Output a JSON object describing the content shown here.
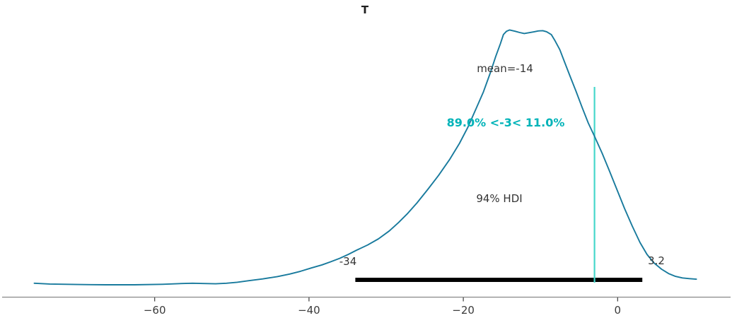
{
  "title": "T",
  "labels": {
    "mean": "mean=-14",
    "ref": "89.0% <-3< 11.0%",
    "hdi": "94% HDI",
    "hdi_lower": "-34",
    "hdi_upper": "3.2"
  },
  "colors": {
    "curve": "#187a9d",
    "ref_line": "#45d7cb",
    "ref_text": "#00b3b8",
    "hdi_bar": "#000000",
    "axis_line": "#888888",
    "tick": "#3b3b3b",
    "text": "#343434",
    "title": "#1f1f1f"
  },
  "chart_data": {
    "type": "line",
    "subtype": "posterior-kde",
    "title": "T",
    "xlabel": "",
    "ylabel": "",
    "xlim": [
      -76,
      10.5
    ],
    "grid": false,
    "mean": -14,
    "ref_val": -3,
    "pct_below_ref": 89.0,
    "pct_above_ref": 11.0,
    "hdi": {
      "prob_label": "94% HDI",
      "lower": -34,
      "upper": 3.2
    },
    "x_ticks": [
      {
        "value": -60,
        "label": "−60"
      },
      {
        "value": -40,
        "label": "−40"
      },
      {
        "value": -20,
        "label": "−20"
      },
      {
        "value": 0,
        "label": "0"
      }
    ],
    "curve": [
      [
        -75.6,
        0.006
      ],
      [
        -73.6,
        0.003
      ],
      [
        -70,
        0.001
      ],
      [
        -66.3,
        0
      ],
      [
        -62.6,
        0
      ],
      [
        -59,
        0.002
      ],
      [
        -56.4,
        0.005
      ],
      [
        -55.1,
        0.006
      ],
      [
        -53.7,
        0.005
      ],
      [
        -52.1,
        0.004
      ],
      [
        -50.7,
        0.006
      ],
      [
        -49.3,
        0.01
      ],
      [
        -47.8,
        0.016
      ],
      [
        -46,
        0.023
      ],
      [
        -44.1,
        0.032
      ],
      [
        -42.5,
        0.042
      ],
      [
        -41.1,
        0.053
      ],
      [
        -39.7,
        0.066
      ],
      [
        -38.3,
        0.078
      ],
      [
        -37.2,
        0.09
      ],
      [
        -36,
        0.104
      ],
      [
        -34.9,
        0.119
      ],
      [
        -33.8,
        0.136
      ],
      [
        -32.4,
        0.156
      ],
      [
        -31,
        0.18
      ],
      [
        -29.6,
        0.211
      ],
      [
        -28.4,
        0.244
      ],
      [
        -27.2,
        0.28
      ],
      [
        -26,
        0.321
      ],
      [
        -24.6,
        0.374
      ],
      [
        -23.2,
        0.429
      ],
      [
        -21.8,
        0.49
      ],
      [
        -20.5,
        0.554
      ],
      [
        -19.4,
        0.618
      ],
      [
        -18.4,
        0.687
      ],
      [
        -17.4,
        0.756
      ],
      [
        -16.5,
        0.831
      ],
      [
        -15.8,
        0.895
      ],
      [
        -15.2,
        0.945
      ],
      [
        -14.8,
        0.981
      ],
      [
        -14.4,
        0.994
      ],
      [
        -14,
        0.999
      ],
      [
        -13.3,
        0.994
      ],
      [
        -12.7,
        0.989
      ],
      [
        -12.1,
        0.985
      ],
      [
        -11.5,
        0.988
      ],
      [
        -10.8,
        0.992
      ],
      [
        -10.3,
        0.995
      ],
      [
        -9.7,
        0.996
      ],
      [
        -9.2,
        0.992
      ],
      [
        -8.6,
        0.981
      ],
      [
        -8.1,
        0.956
      ],
      [
        -7.5,
        0.922
      ],
      [
        -6.9,
        0.875
      ],
      [
        -6.2,
        0.82
      ],
      [
        -5.4,
        0.759
      ],
      [
        -4.6,
        0.695
      ],
      [
        -3.8,
        0.634
      ],
      [
        -3.0,
        0.582
      ],
      [
        -2.0,
        0.515
      ],
      [
        -1.1,
        0.449
      ],
      [
        -0.1,
        0.374
      ],
      [
        0.9,
        0.299
      ],
      [
        1.9,
        0.23
      ],
      [
        2.9,
        0.166
      ],
      [
        3.8,
        0.119
      ],
      [
        4.7,
        0.086
      ],
      [
        5.7,
        0.061
      ],
      [
        6.6,
        0.044
      ],
      [
        7.5,
        0.033
      ],
      [
        8.4,
        0.027
      ],
      [
        9.3,
        0.024
      ],
      [
        10.2,
        0.022
      ]
    ]
  }
}
